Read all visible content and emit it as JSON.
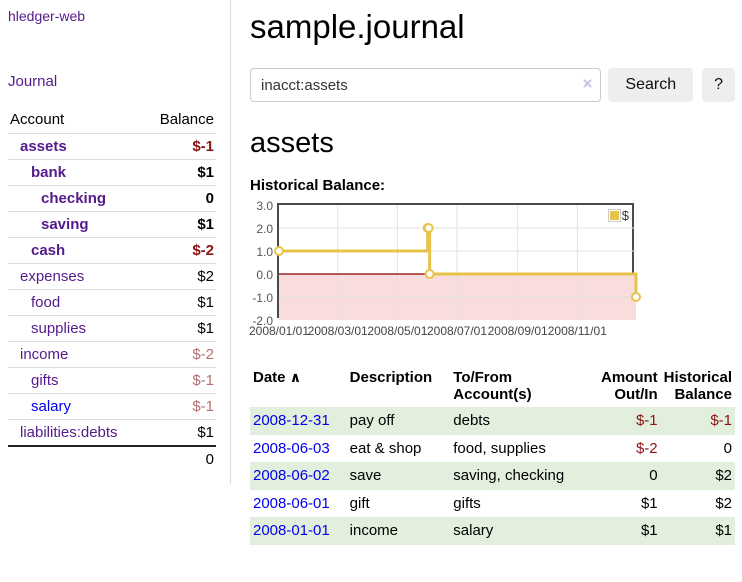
{
  "colors": {
    "link_purple": "#551a8b",
    "link_blue": "#0000ee",
    "negative_strong": "#8b1414",
    "negative_soft": "#b56f6f",
    "row_green": "#e2efdc",
    "button_gray": "#eeeeee",
    "chart_line": "#e8c34a",
    "chart_negative_fill": "#f9dcdc",
    "chart_zero_line": "#8b0000"
  },
  "sidebar": {
    "app_title": "hledger-web",
    "journal_link": "Journal",
    "accounts_table": {
      "headers": {
        "account": "Account",
        "balance": "Balance"
      },
      "rows": [
        {
          "name": "assets",
          "balance": "$-1"
        },
        {
          "name": "bank",
          "balance": "$1"
        },
        {
          "name": "checking",
          "balance": "0"
        },
        {
          "name": "saving",
          "balance": "$1"
        },
        {
          "name": "cash",
          "balance": "$-2"
        },
        {
          "name": "expenses",
          "balance": "$2"
        },
        {
          "name": "food",
          "balance": "$1"
        },
        {
          "name": "supplies",
          "balance": "$1"
        },
        {
          "name": "income",
          "balance": "$-2"
        },
        {
          "name": "gifts",
          "balance": "$-1"
        },
        {
          "name": "salary",
          "balance": "$-1"
        },
        {
          "name": "liabilities:debts",
          "balance": "$1"
        }
      ],
      "total": "0"
    }
  },
  "main": {
    "page_title": "sample.journal",
    "search": {
      "query": "inacct:assets",
      "clear_icon": "×",
      "search_button": "Search",
      "help_button": "?"
    },
    "account_heading": "assets",
    "chart_heading": "Historical Balance:"
  },
  "chart_data": {
    "type": "line",
    "title": "Historical Balance:",
    "step": true,
    "xlim": [
      "2008-01-01",
      "2008-12-31"
    ],
    "ylim": [
      -2,
      3
    ],
    "x_ticks": [
      "2008/01/01",
      "2008/03/01",
      "2008/05/01",
      "2008/07/01",
      "2008/09/01",
      "2008/11/01"
    ],
    "y_ticks": [
      "3.0",
      "2.0",
      "1.0",
      "0.0",
      "-1.0",
      "-2.0"
    ],
    "legend": {
      "label": "$",
      "position": "top-right"
    },
    "grid": true,
    "negative_fill": "#f9dcdc",
    "zero_line_color": "#8b0000",
    "series": [
      {
        "name": "$",
        "color": "#e8c34a",
        "points": [
          [
            "2008-01-01",
            1
          ],
          [
            "2008-06-01",
            2
          ],
          [
            "2008-06-02",
            2
          ],
          [
            "2008-06-03",
            0
          ],
          [
            "2008-12-31",
            -1
          ]
        ]
      }
    ]
  },
  "register": {
    "headers": {
      "date": "Date",
      "sort_icon": "∧",
      "description": "Description",
      "account": [
        "To/From",
        "Account(s)"
      ],
      "amount": [
        "Amount",
        "Out/In"
      ],
      "balance": [
        "Historical",
        "Balance"
      ]
    },
    "rows": [
      {
        "date": "2008-12-31",
        "description": "pay off",
        "account": "debts",
        "amount": "$-1",
        "balance": "$-1"
      },
      {
        "date": "2008-06-03",
        "description": "eat & shop",
        "account": "food, supplies",
        "amount": "$-2",
        "balance": "0"
      },
      {
        "date": "2008-06-02",
        "description": "save",
        "account": "saving, checking",
        "amount": "0",
        "balance": "$2"
      },
      {
        "date": "2008-06-01",
        "description": "gift",
        "account": "gifts",
        "amount": "$1",
        "balance": "$2"
      },
      {
        "date": "2008-01-01",
        "description": "income",
        "account": "salary",
        "amount": "$1",
        "balance": "$1"
      }
    ]
  }
}
